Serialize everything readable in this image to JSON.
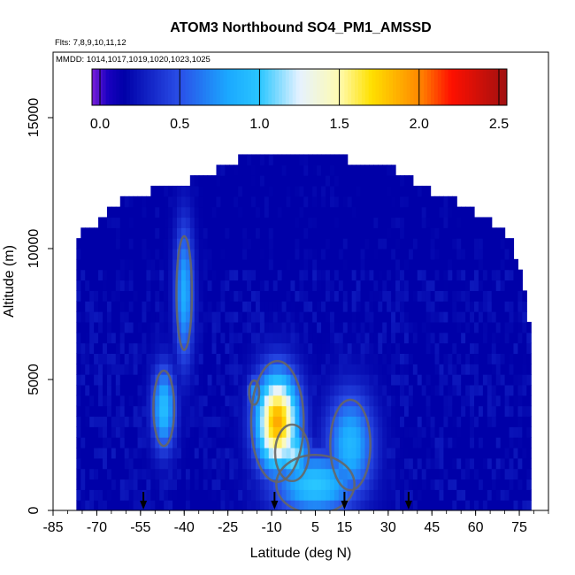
{
  "chart_data": {
    "type": "heatmap",
    "title": "ATOM3 Northbound SO4_PM1_AMSSD",
    "subtitle_flights": "Flts: 7,8,9,10,11,12",
    "subtitle_dates": "MMDD: 1014,1017,1019,1020,1023,1025",
    "xlabel": "Latitude (deg N)",
    "ylabel": "Altitude (m)",
    "xlim": [
      -85,
      85
    ],
    "ylim": [
      0,
      17500
    ],
    "x_ticks": [
      -85,
      -70,
      -55,
      -40,
      -25,
      -10,
      5,
      15,
      30,
      45,
      60,
      75
    ],
    "x_tick_labels": [
      "-85",
      "-70",
      "-55",
      "-40",
      "-25",
      "-10",
      "5",
      "15",
      "30",
      "45",
      "60",
      "75"
    ],
    "y_ticks": [
      0,
      5000,
      10000,
      15000
    ],
    "y_tick_labels": [
      "0",
      "5000",
      "10000",
      "15000"
    ],
    "colorbar": {
      "range": [
        -0.05,
        2.55
      ],
      "ticks": [
        0.0,
        0.5,
        1.0,
        1.5,
        2.0,
        2.5
      ],
      "tick_labels": [
        "0.0",
        "0.5",
        "1.0",
        "1.5",
        "2.0",
        "2.5"
      ],
      "stops": [
        {
          "v": -0.05,
          "c": "#7a1fd8"
        },
        {
          "v": 0.05,
          "c": "#1a00c0"
        },
        {
          "v": 0.15,
          "c": "#0000a8"
        },
        {
          "v": 0.5,
          "c": "#2a4fe8"
        },
        {
          "v": 0.8,
          "c": "#1ba8ff"
        },
        {
          "v": 1.0,
          "c": "#29c6ff"
        },
        {
          "v": 1.25,
          "c": "#e6f2ff"
        },
        {
          "v": 1.5,
          "c": "#fffbb0"
        },
        {
          "v": 1.7,
          "c": "#ffe000"
        },
        {
          "v": 2.0,
          "c": "#ff8800"
        },
        {
          "v": 2.2,
          "c": "#ff1000"
        },
        {
          "v": 2.55,
          "c": "#a01010"
        }
      ]
    },
    "latitude_extent": [
      -77,
      79
    ],
    "profile_top": [
      {
        "x": -77,
        "y": 10300
      },
      {
        "x": -70,
        "y": 10800
      },
      {
        "x": -60,
        "y": 11800
      },
      {
        "x": -40,
        "y": 12300
      },
      {
        "x": -25,
        "y": 13000
      },
      {
        "x": -20,
        "y": 13300
      },
      {
        "x": 10,
        "y": 13300
      },
      {
        "x": 30,
        "y": 13000
      },
      {
        "x": 45,
        "y": 12000
      },
      {
        "x": 55,
        "y": 11500
      },
      {
        "x": 65,
        "y": 10800
      },
      {
        "x": 72,
        "y": 10200
      },
      {
        "x": 77,
        "y": 8200
      },
      {
        "x": 79,
        "y": 6500
      }
    ],
    "background_value": 0.15,
    "features": [
      {
        "lat": -40,
        "alt": 8300,
        "value": 0.85,
        "width_deg": 4,
        "height_m": 3300
      },
      {
        "lat": -47,
        "alt": 3900,
        "value": 0.95,
        "width_deg": 5,
        "height_m": 2000
      },
      {
        "lat": -8,
        "alt": 3400,
        "value": 1.9,
        "width_deg": 9,
        "height_m": 2300
      },
      {
        "lat": -3,
        "alt": 2200,
        "value": 1.2,
        "width_deg": 7,
        "height_m": 1300
      },
      {
        "lat": 5,
        "alt": 1000,
        "value": 1.0,
        "width_deg": 18,
        "height_m": 1500
      },
      {
        "lat": 17,
        "alt": 2500,
        "value": 0.9,
        "width_deg": 10,
        "height_m": 2500
      },
      {
        "lat": -16,
        "alt": 4500,
        "value": 0.75,
        "width_deg": 3,
        "height_m": 800
      }
    ],
    "contour_level": 0.5,
    "arrows_lat": [
      -54,
      -9,
      15,
      37
    ]
  }
}
